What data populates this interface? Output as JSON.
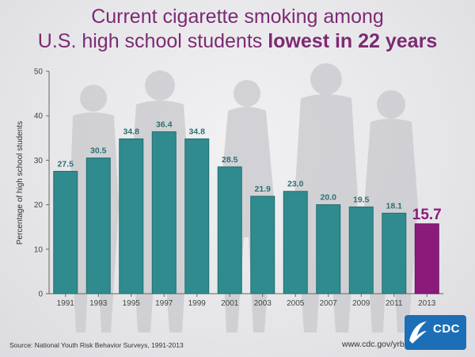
{
  "title": {
    "line1": "Current cigarette smoking among",
    "line2_plain": "U.S. high school students ",
    "line2_bold": "lowest in 22 years"
  },
  "footer": {
    "source": "Source: National Youth Risk Behavior Surveys, 1991-2013",
    "url": "www.cdc.gov/yrbs",
    "logo_text": "CDC"
  },
  "colors": {
    "bar": "#2f8b8e",
    "highlight_bar": "#8b1b7b",
    "label": "#2b6f73",
    "highlight_label": "#8b1b7b",
    "title": "#7d2a72"
  },
  "chart_data": {
    "type": "bar",
    "categories": [
      "1991",
      "1993",
      "1995",
      "1997",
      "1999",
      "2001",
      "2003",
      "2005",
      "2007",
      "2009",
      "2011",
      "2013"
    ],
    "values": [
      27.5,
      30.5,
      34.8,
      36.4,
      34.8,
      28.5,
      21.9,
      23.0,
      20.0,
      19.5,
      18.1,
      15.7
    ],
    "value_labels": [
      "27.5",
      "30.5",
      "34.8",
      "36.4",
      "34.8",
      "28.5",
      "21.9",
      "23.0",
      "20.0",
      "19.5",
      "18.1",
      "15.7"
    ],
    "highlight_index": 11,
    "ylabel": "Percentage of high school students",
    "ylim": [
      0,
      50
    ],
    "yticks": [
      "0",
      "10",
      "20",
      "30",
      "40",
      "50"
    ],
    "grid": false
  }
}
